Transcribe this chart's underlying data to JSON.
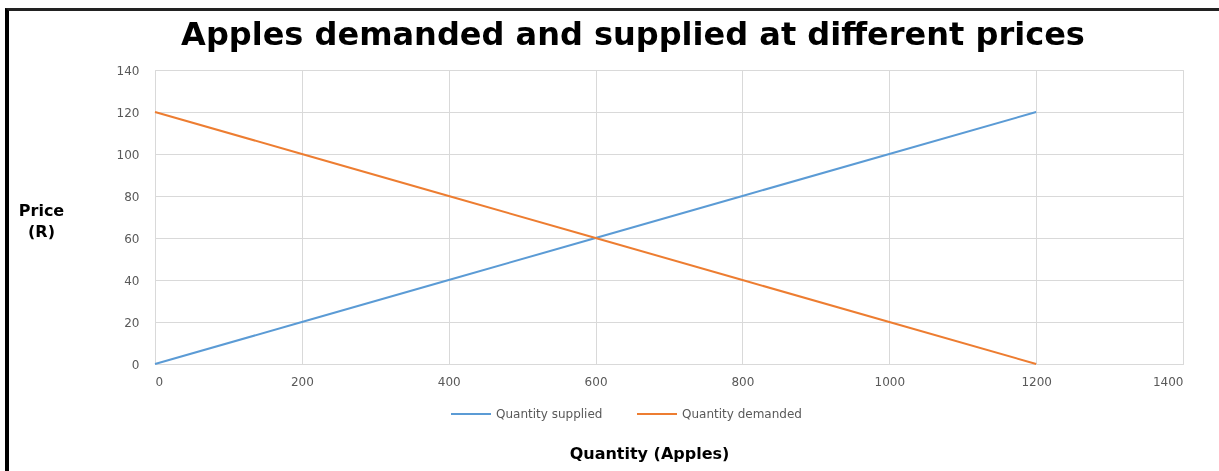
{
  "chart_data": {
    "type": "line",
    "title": "Apples demanded and supplied at different prices",
    "xlabel": "Quantity (Apples)",
    "ylabel": "Price\n(R)",
    "x": [
      0,
      200,
      400,
      600,
      800,
      1000,
      1200
    ],
    "series": [
      {
        "name": "Quantity supplied",
        "color": "#5b9bd5",
        "values": [
          0,
          20,
          40,
          60,
          80,
          100,
          120
        ]
      },
      {
        "name": "Quantity demanded",
        "color": "#ed7d31",
        "values": [
          120,
          100,
          80,
          60,
          40,
          20,
          0
        ]
      }
    ],
    "xlim": [
      0,
      1400
    ],
    "xticks": [
      0,
      200,
      400,
      600,
      800,
      1000,
      1200,
      1400
    ],
    "ylim": [
      0,
      140
    ],
    "yticks": [
      0,
      20,
      40,
      60,
      80,
      100,
      120,
      140
    ],
    "grid": true,
    "legend": "bottom"
  }
}
